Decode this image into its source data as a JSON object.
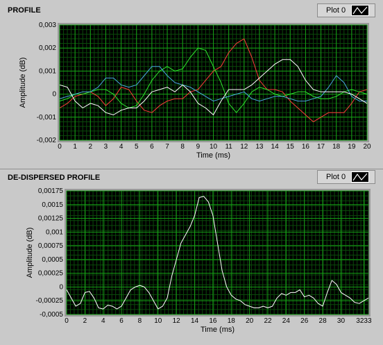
{
  "top": {
    "title": "PROFILE",
    "legend": "Plot 0",
    "chart_data": {
      "type": "line",
      "xlabel": "Time (ms)",
      "ylabel": "Amplitude (dB)",
      "xlim": [
        0,
        20
      ],
      "ylim": [
        -0.002,
        0.003
      ],
      "xticks": [
        "0",
        "1",
        "2",
        "3",
        "4",
        "5",
        "6",
        "7",
        "8",
        "9",
        "10",
        "11",
        "12",
        "13",
        "14",
        "15",
        "16",
        "17",
        "18",
        "19",
        "20"
      ],
      "yticks": [
        "-0,002",
        "-0,001",
        "0",
        "0,001",
        "0,002",
        "0,003"
      ],
      "grid": true,
      "series": [
        {
          "color": "#ff3b3b",
          "x": [
            0,
            0.5,
            1,
            1.5,
            2,
            2.5,
            3,
            3.5,
            4,
            4.5,
            5,
            5.5,
            6,
            6.5,
            7,
            7.5,
            8,
            8.5,
            9,
            9.5,
            10,
            10.5,
            11,
            11.5,
            12,
            12.5,
            13,
            13.5,
            14,
            14.5,
            15,
            15.5,
            16,
            16.5,
            17,
            17.5,
            18,
            18.5,
            19,
            19.5,
            20
          ],
          "y": [
            -0.0006,
            -0.0004,
            -0.0001,
            0.0,
            0.0001,
            -0.0001,
            -0.0005,
            -0.0002,
            0.0003,
            0.0002,
            -0.0003,
            -0.0007,
            -0.0008,
            -0.0005,
            -0.0003,
            -0.0002,
            -0.0002,
            0.0001,
            0.0002,
            0.0006,
            0.001,
            0.0012,
            0.0018,
            0.0022,
            0.0024,
            0.0016,
            0.0006,
            0.0002,
            0.0002,
            0.0001,
            -0.0003,
            -0.0006,
            -0.0009,
            -0.0012,
            -0.001,
            -0.0008,
            -0.0008,
            -0.0008,
            -0.0004,
            0.0001,
            0.0002
          ]
        },
        {
          "color": "#2ee62e",
          "x": [
            0,
            0.5,
            1,
            1.5,
            2,
            2.5,
            3,
            3.5,
            4,
            4.5,
            5,
            5.5,
            6,
            6.5,
            7,
            7.5,
            8,
            8.5,
            9,
            9.5,
            10,
            10.5,
            11,
            11.5,
            12,
            12.5,
            13,
            13.5,
            14,
            14.5,
            15,
            15.5,
            16,
            16.5,
            17,
            17.5,
            18,
            18.5,
            19,
            19.5,
            20
          ],
          "y": [
            -0.0003,
            -0.0002,
            0.0,
            0.0,
            0.0001,
            0.0002,
            0.0002,
            0.0,
            -0.0004,
            -0.0006,
            -0.0005,
            0.0,
            0.0006,
            0.001,
            0.0012,
            0.001,
            0.0011,
            0.0016,
            0.002,
            0.0019,
            0.0012,
            0.0005,
            -0.0004,
            -0.0008,
            -0.0004,
            0.0001,
            0.0003,
            0.0002,
            0.0,
            -0.0001,
            0.0,
            0.0001,
            0.0001,
            -0.0001,
            -0.0002,
            -0.0002,
            -0.0001,
            0.0001,
            0.0002,
            0.0001,
            0.0
          ]
        },
        {
          "color": "#4aa8e0",
          "x": [
            0,
            0.5,
            1,
            1.5,
            2,
            2.5,
            3,
            3.5,
            4,
            4.5,
            5,
            5.5,
            6,
            6.5,
            7,
            7.5,
            8,
            8.5,
            9,
            9.5,
            10,
            10.5,
            11,
            11.5,
            12,
            12.5,
            13,
            13.5,
            14,
            14.5,
            15,
            15.5,
            16,
            16.5,
            17,
            17.5,
            18,
            18.5,
            19,
            19.5,
            20
          ],
          "y": [
            -0.0002,
            -0.0001,
            0.0,
            0.0001,
            0.0001,
            0.0003,
            0.0007,
            0.0007,
            0.0004,
            0.0003,
            0.0004,
            0.0008,
            0.0012,
            0.0012,
            0.0008,
            0.0005,
            0.0004,
            0.0003,
            0.0001,
            -0.0001,
            -0.0003,
            -0.0002,
            -0.0001,
            0.0,
            0.0001,
            -0.0002,
            -0.0003,
            -0.0002,
            -0.0001,
            -0.0001,
            -0.0002,
            -0.0003,
            -0.0003,
            -0.0002,
            -0.0001,
            0.0003,
            0.0008,
            0.0005,
            -0.0001,
            -0.0003,
            -0.0003
          ]
        },
        {
          "color": "#ffffff",
          "x": [
            0,
            0.5,
            1,
            1.5,
            2,
            2.5,
            3,
            3.5,
            4,
            4.5,
            5,
            5.5,
            6,
            6.5,
            7,
            7.5,
            8,
            8.5,
            9,
            9.5,
            10,
            10.5,
            11,
            11.5,
            12,
            12.5,
            13,
            13.5,
            14,
            14.5,
            15,
            15.5,
            16,
            16.5,
            17,
            17.5,
            18,
            18.5,
            19,
            19.5,
            20
          ],
          "y": [
            0.0004,
            0.0003,
            -0.0003,
            -0.0006,
            -0.0004,
            -0.0005,
            -0.0008,
            -0.0009,
            -0.0007,
            -0.0006,
            -0.0006,
            -0.0003,
            0.0001,
            0.0002,
            0.0003,
            0.0001,
            0.0004,
            0.0001,
            -0.0004,
            -0.0006,
            -0.0009,
            -0.0003,
            0.0002,
            0.0002,
            0.0002,
            0.0004,
            0.0007,
            0.001,
            0.0013,
            0.0015,
            0.0015,
            0.0012,
            0.0006,
            0.0002,
            0.0001,
            0.0001,
            0.0001,
            0.0001,
            0.0,
            -0.0002,
            -0.0004
          ]
        }
      ]
    }
  },
  "bottom": {
    "title": "DE-DISPERSED PROFILE",
    "legend": "Plot 0",
    "chart_data": {
      "type": "line",
      "xlabel": "Time (ms)",
      "ylabel": "Amplitude (dB)",
      "xlim": [
        0,
        33
      ],
      "ylim": [
        -0.0005,
        0.00175
      ],
      "xticks": [
        "0",
        "2",
        "4",
        "6",
        "8",
        "10",
        "12",
        "14",
        "16",
        "18",
        "20",
        "22",
        "24",
        "26",
        "28",
        "30",
        "3233"
      ],
      "xtickvals": [
        0,
        2,
        4,
        6,
        8,
        10,
        12,
        14,
        16,
        18,
        20,
        22,
        24,
        26,
        28,
        30,
        32.5
      ],
      "yticks": [
        "-0,0005",
        "-0,00025",
        "0",
        "0,00025",
        "0,0005",
        "0,00075",
        "0,001",
        "0,00125",
        "0,0015",
        "0,00175"
      ],
      "grid": true,
      "series": [
        {
          "color": "#ffffff",
          "x": [
            0,
            0.5,
            1,
            1.5,
            2,
            2.5,
            3,
            3.5,
            4,
            4.5,
            5,
            5.5,
            6,
            6.5,
            7,
            7.5,
            8,
            8.5,
            9,
            9.5,
            10,
            10.5,
            11,
            11.5,
            12,
            12.5,
            13,
            13.5,
            14,
            14.5,
            15,
            15.5,
            16,
            16.5,
            17,
            17.5,
            18,
            18.5,
            19,
            19.5,
            20,
            20.5,
            21,
            21.5,
            22,
            22.5,
            23,
            23.5,
            24,
            24.5,
            25,
            25.5,
            26,
            26.5,
            27,
            27.5,
            28,
            28.5,
            29,
            29.5,
            30,
            30.5,
            31,
            31.5,
            32,
            32.5,
            33
          ],
          "y": [
            -5e-05,
            -0.0002,
            -0.00035,
            -0.0003,
            -0.0001,
            -8e-05,
            -0.0002,
            -0.00038,
            -0.0004,
            -0.00033,
            -0.00035,
            -0.0004,
            -0.00035,
            -0.0002,
            -5e-05,
            0.0,
            3e-05,
            0.0,
            -0.0001,
            -0.00025,
            -0.0004,
            -0.00035,
            -0.0002,
            0.0002,
            0.0005,
            0.0008,
            0.00095,
            0.0011,
            0.0013,
            0.00163,
            0.00165,
            0.00155,
            0.0013,
            0.0008,
            0.0003,
            0.0,
            -0.00015,
            -0.00022,
            -0.00025,
            -0.00032,
            -0.00035,
            -0.00038,
            -0.00038,
            -0.00035,
            -0.00038,
            -0.00035,
            -0.0002,
            -0.00012,
            -0.00015,
            -0.0001,
            -0.0001,
            -5e-05,
            -0.00018,
            -0.00015,
            -0.0002,
            -0.0003,
            -0.00035,
            -0.0001,
            0.00012,
            5e-05,
            -0.0001,
            -0.00015,
            -0.0002,
            -0.00028,
            -0.0003,
            -0.00025,
            -0.0002
          ]
        }
      ]
    }
  }
}
